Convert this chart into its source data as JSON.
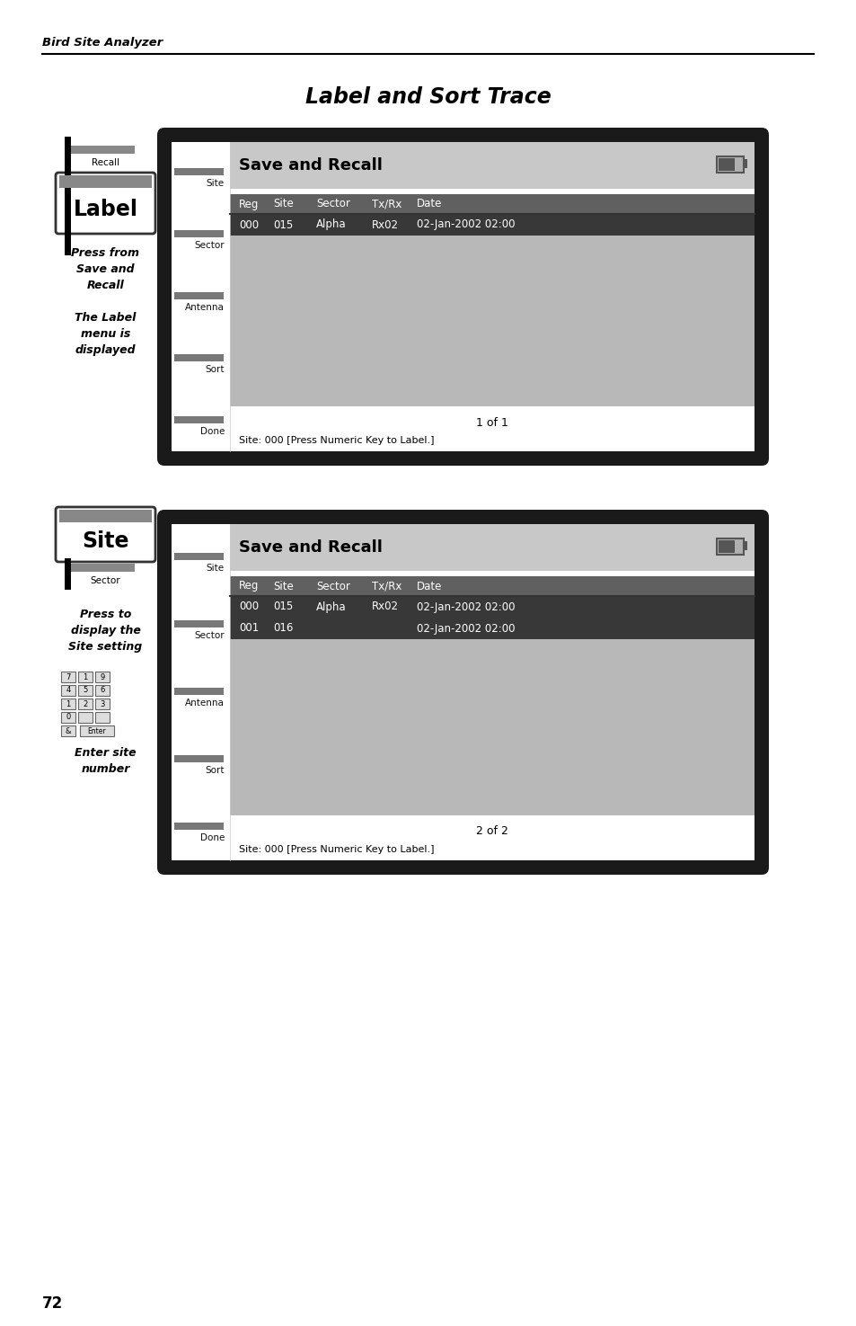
{
  "page_title": "Label and Sort Trace",
  "header_text": "Bird Site Analyzer",
  "page_number": "72",
  "bg_color": "#ffffff",
  "section1": {
    "label_box_text": "Label",
    "recall_text": "Recall",
    "desc_text": "Press from\nSave and\nRecall\n\nThe Label\nmenu is\ndisplayed",
    "screen_title": "Save and Recall",
    "menu_buttons": [
      "Site",
      "Sector",
      "Antenna",
      "Sort",
      "Done"
    ],
    "table_headers": [
      "Reg",
      "Site",
      "Sector",
      "Tx/Rx",
      "Date"
    ],
    "table_row1": [
      "000",
      "015",
      "Alpha",
      "Rx02",
      "02-Jan-2002 02:00"
    ],
    "status_text": "1 of 1",
    "bottom_text": "Site: 000 [Press Numeric Key to Label.]"
  },
  "section2": {
    "label_box_text": "Site",
    "sector_text": "Sector",
    "desc_text1": "Press to\ndisplay the\nSite setting",
    "desc_text2": "Enter site\nnumber",
    "screen_title": "Save and Recall",
    "menu_buttons": [
      "Site",
      "Sector",
      "Antenna",
      "Sort",
      "Done"
    ],
    "table_headers": [
      "Reg",
      "Site",
      "Sector",
      "Tx/Rx",
      "Date"
    ],
    "table_row1": [
      "000",
      "015",
      "Alpha",
      "Rx02",
      "02-Jan-2002 02:00"
    ],
    "table_row2": [
      "001",
      "016",
      "",
      "",
      "02-Jan-2002 02:00"
    ],
    "status_text": "2 of 2",
    "bottom_text": "Site: 000 [Press Numeric Key to Label.]"
  }
}
